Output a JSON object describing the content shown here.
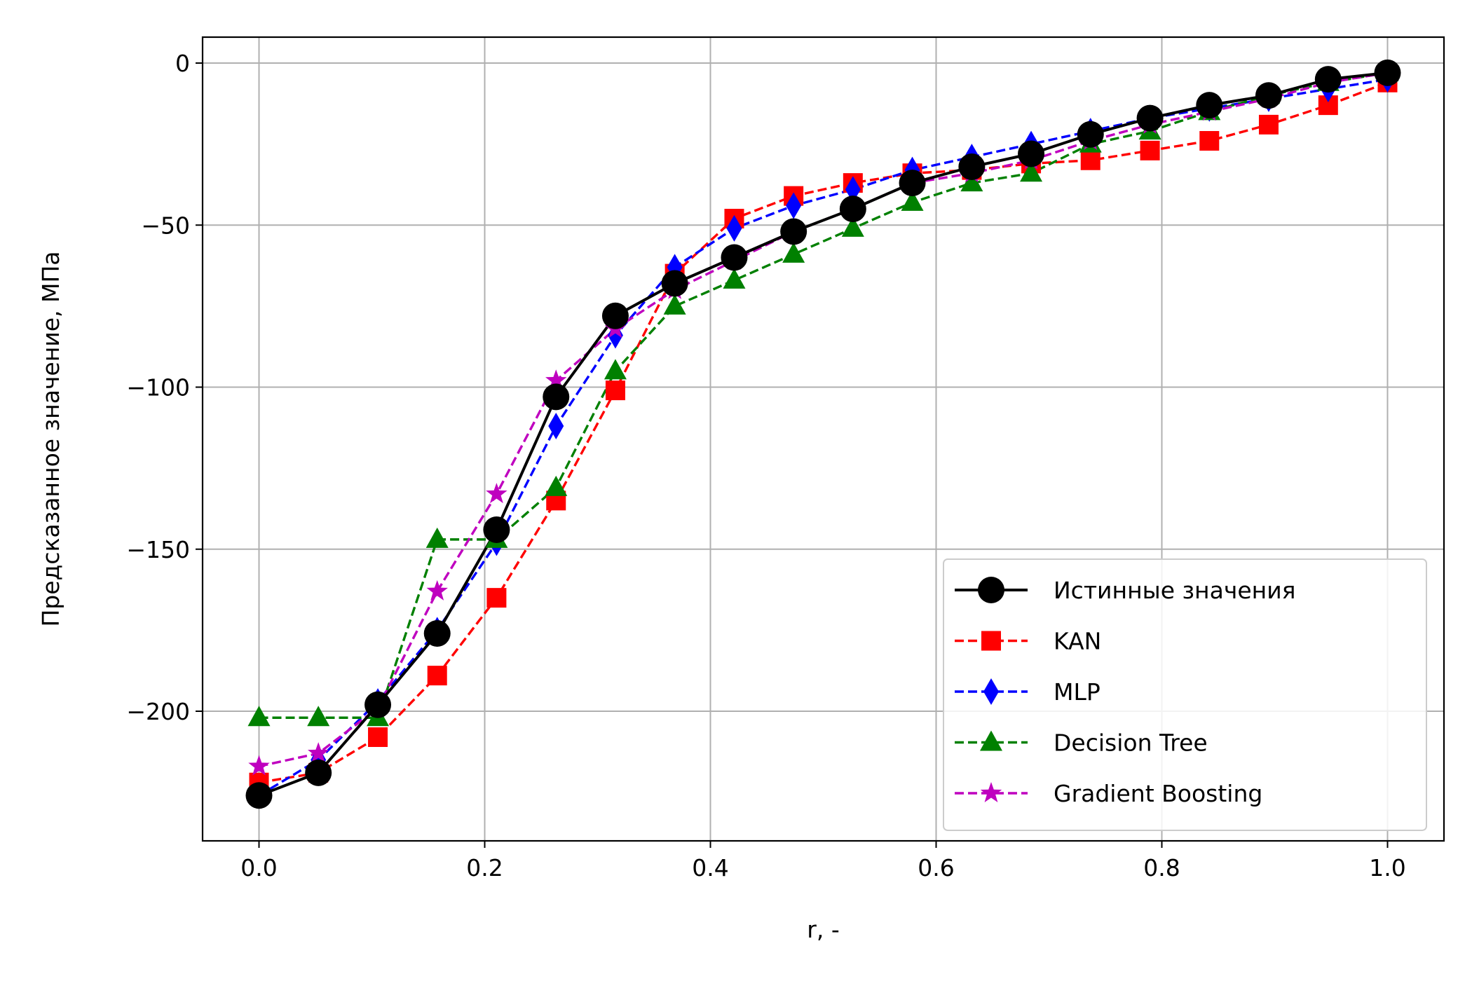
{
  "chart_data": {
    "type": "line",
    "xlabel": "r, -",
    "ylabel": "Предсказанное значение, МПа",
    "xlim": [
      -0.05,
      1.05
    ],
    "ylim": [
      -240,
      8
    ],
    "xticks": [
      0.0,
      0.2,
      0.4,
      0.6,
      0.8,
      1.0
    ],
    "xtick_labels": [
      "0.0",
      "0.2",
      "0.4",
      "0.6",
      "0.8",
      "1.0"
    ],
    "yticks": [
      0,
      -50,
      -100,
      -150,
      -200
    ],
    "ytick_labels": [
      "0",
      "−50",
      "−100",
      "−150",
      "−200"
    ],
    "grid": true,
    "legend_position": "bottom-right",
    "x": [
      0.0,
      0.0526,
      0.1053,
      0.1579,
      0.2105,
      0.2632,
      0.3158,
      0.3684,
      0.4211,
      0.4737,
      0.5263,
      0.5789,
      0.6316,
      0.6842,
      0.7368,
      0.7895,
      0.8421,
      0.8947,
      0.9474,
      1.0
    ],
    "series": [
      {
        "name": "Истинные значения",
        "color": "#000000",
        "marker": "circle",
        "linestyle": "solid",
        "values": [
          -226,
          -219,
          -198,
          -176,
          -144,
          -103,
          -78,
          -68,
          -60,
          -52,
          -45,
          -37,
          -32,
          -28,
          -22,
          -17,
          -13,
          -10,
          -5,
          -3
        ]
      },
      {
        "name": "KAN",
        "color": "#ff0000",
        "marker": "square",
        "linestyle": "dashed",
        "values": [
          -222,
          -219,
          -208,
          -189,
          -165,
          -135,
          -101,
          -65,
          -48,
          -41,
          -37,
          -34,
          -33,
          -31,
          -30,
          -27,
          -24,
          -19,
          -13,
          -6
        ]
      },
      {
        "name": "MLP",
        "color": "#0000ff",
        "marker": "thin_diamond",
        "linestyle": "dashed",
        "values": [
          -226,
          -215,
          -197,
          -175,
          -148,
          -112,
          -84,
          -63,
          -51,
          -44,
          -39,
          -33,
          -29,
          -25,
          -21,
          -17,
          -14,
          -11,
          -8,
          -5
        ]
      },
      {
        "name": "Decision Tree",
        "color": "#008000",
        "marker": "triangle",
        "linestyle": "dashed",
        "values": [
          -202,
          -202,
          -202,
          -147,
          -147,
          -131,
          -95,
          -75,
          -67,
          -59,
          -51,
          -43,
          -37,
          -34,
          -25,
          -21,
          -15,
          -10,
          -6,
          -3
        ]
      },
      {
        "name": "Gradient Boosting",
        "color": "#bf00bf",
        "marker": "star",
        "linestyle": "dashed",
        "values": [
          -217,
          -213,
          -199,
          -163,
          -133,
          -98,
          -82,
          -70,
          -61,
          -52,
          -45,
          -37,
          -34,
          -30,
          -24,
          -19,
          -15,
          -11,
          -6,
          -3
        ]
      }
    ]
  }
}
